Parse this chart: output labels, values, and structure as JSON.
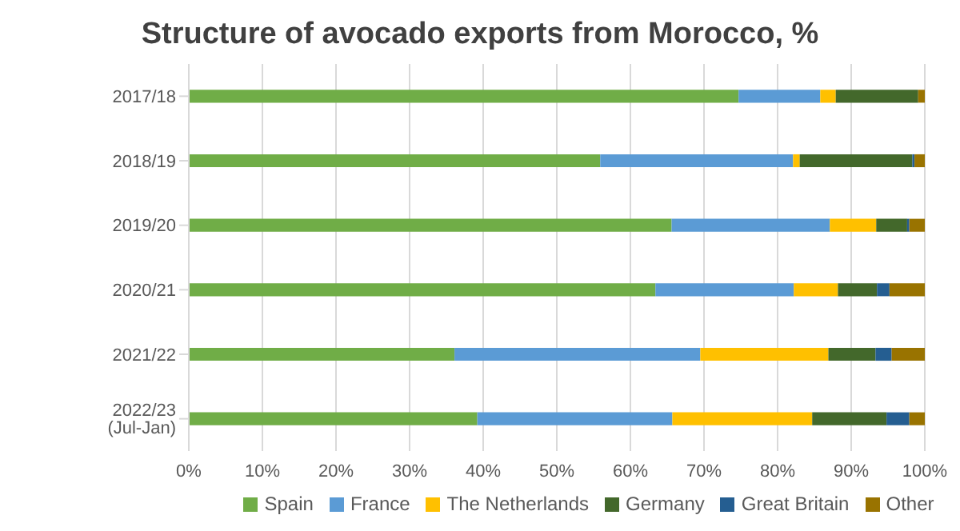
{
  "chart_data": {
    "type": "bar",
    "orientation": "horizontal",
    "stacked": true,
    "title": "Structure of avocado exports from Morocco, %",
    "categories": [
      "2017/18",
      "2018/19",
      "2019/20",
      "2020/21",
      "2021/22",
      "2022/23 (Jul-Jan)"
    ],
    "series": [
      {
        "name": "Spain",
        "color": "#70ad47",
        "values": [
          74.7,
          55.9,
          65.6,
          63.4,
          36.1,
          39.2
        ]
      },
      {
        "name": "France",
        "color": "#5b9bd5",
        "values": [
          11.1,
          26.2,
          21.5,
          18.8,
          33.4,
          26.5
        ]
      },
      {
        "name": "The Netherlands",
        "color": "#ffc000",
        "values": [
          2.1,
          0.9,
          6.3,
          6.0,
          17.4,
          19.0
        ]
      },
      {
        "name": "Germany",
        "color": "#43682b",
        "values": [
          11.2,
          15.3,
          4.2,
          5.3,
          6.4,
          10.1
        ]
      },
      {
        "name": "Great Britain",
        "color": "#255e91",
        "values": [
          0,
          0.3,
          0.3,
          1.7,
          2.2,
          3.1
        ]
      },
      {
        "name": "Other",
        "color": "#997300",
        "values": [
          0.9,
          1.4,
          2.1,
          4.8,
          4.5,
          2.1
        ]
      }
    ],
    "xlim": [
      0,
      100
    ],
    "xticks": [
      {
        "value": 0,
        "label": "0%"
      },
      {
        "value": 10,
        "label": "10%"
      },
      {
        "value": 20,
        "label": "20%"
      },
      {
        "value": 30,
        "label": "30%"
      },
      {
        "value": 40,
        "label": "40%"
      },
      {
        "value": 50,
        "label": "50%"
      },
      {
        "value": 60,
        "label": "60%"
      },
      {
        "value": 70,
        "label": "70%"
      },
      {
        "value": 80,
        "label": "80%"
      },
      {
        "value": 90,
        "label": "90%"
      },
      {
        "value": 100,
        "label": "100%"
      }
    ],
    "grid": "x",
    "legend": "bottom"
  }
}
